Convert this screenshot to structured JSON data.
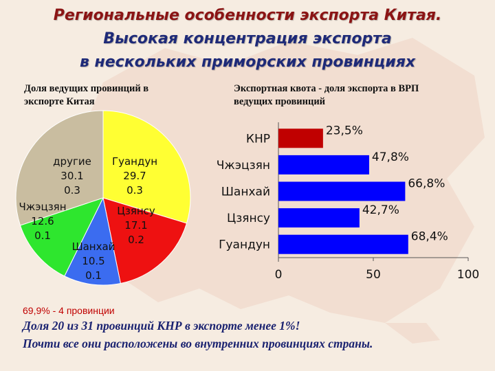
{
  "title": {
    "line1": "Региональные особенности экспорта Китая.",
    "line2": "Высокая концентрация экспорта",
    "line3": "в нескольких приморских провинциях",
    "color1": "#8b1414",
    "color23": "#1e2a78"
  },
  "left_subtitle": {
    "line1": "Доля ведущих провинций в",
    "line2": "экспорте Китая"
  },
  "right_subtitle": {
    "line1": "Экспортная квота - доля экспорта в ВРП",
    "line2": "ведущих провинций"
  },
  "note": "69,9% - 4 провинции",
  "footer": {
    "line1": "Доля 20 из 31 провинций КНР в экспорте менее 1%!",
    "line2": "Почти все они расположены во внутренних провинциях страны."
  },
  "chart_data": [
    {
      "type": "pie",
      "slices": [
        {
          "label": "Гуандун",
          "value": 29.7,
          "sub": "0.3",
          "color": "#ffff33"
        },
        {
          "label": "Цзянсу",
          "value": 17.1,
          "sub": "0.2",
          "color": "#ee1111"
        },
        {
          "label": "Шанхай",
          "value": 10.5,
          "sub": "0.1",
          "color": "#3b6cf0"
        },
        {
          "label": "Чжэцзян",
          "value": 12.6,
          "sub": "0.1",
          "color": "#2ee62e"
        },
        {
          "label": "другие",
          "value": 30.1,
          "sub": "0.3",
          "color": "#c9bda0"
        }
      ]
    },
    {
      "type": "bar",
      "orientation": "horizontal",
      "categories": [
        "КНР",
        "Чжэцзян",
        "Шанхай",
        "Цзянсу",
        "Гуандун"
      ],
      "values": [
        23.5,
        47.8,
        66.8,
        42.7,
        68.4
      ],
      "value_labels": [
        "23,5%",
        "47,8%",
        "66,8%",
        "42,7%",
        "68,4%"
      ],
      "colors": [
        "#c00000",
        "#0000ff",
        "#0000ff",
        "#0000ff",
        "#0000ff"
      ],
      "xlim": [
        0,
        100
      ],
      "xticks": [
        "0",
        "50",
        "100"
      ]
    }
  ]
}
